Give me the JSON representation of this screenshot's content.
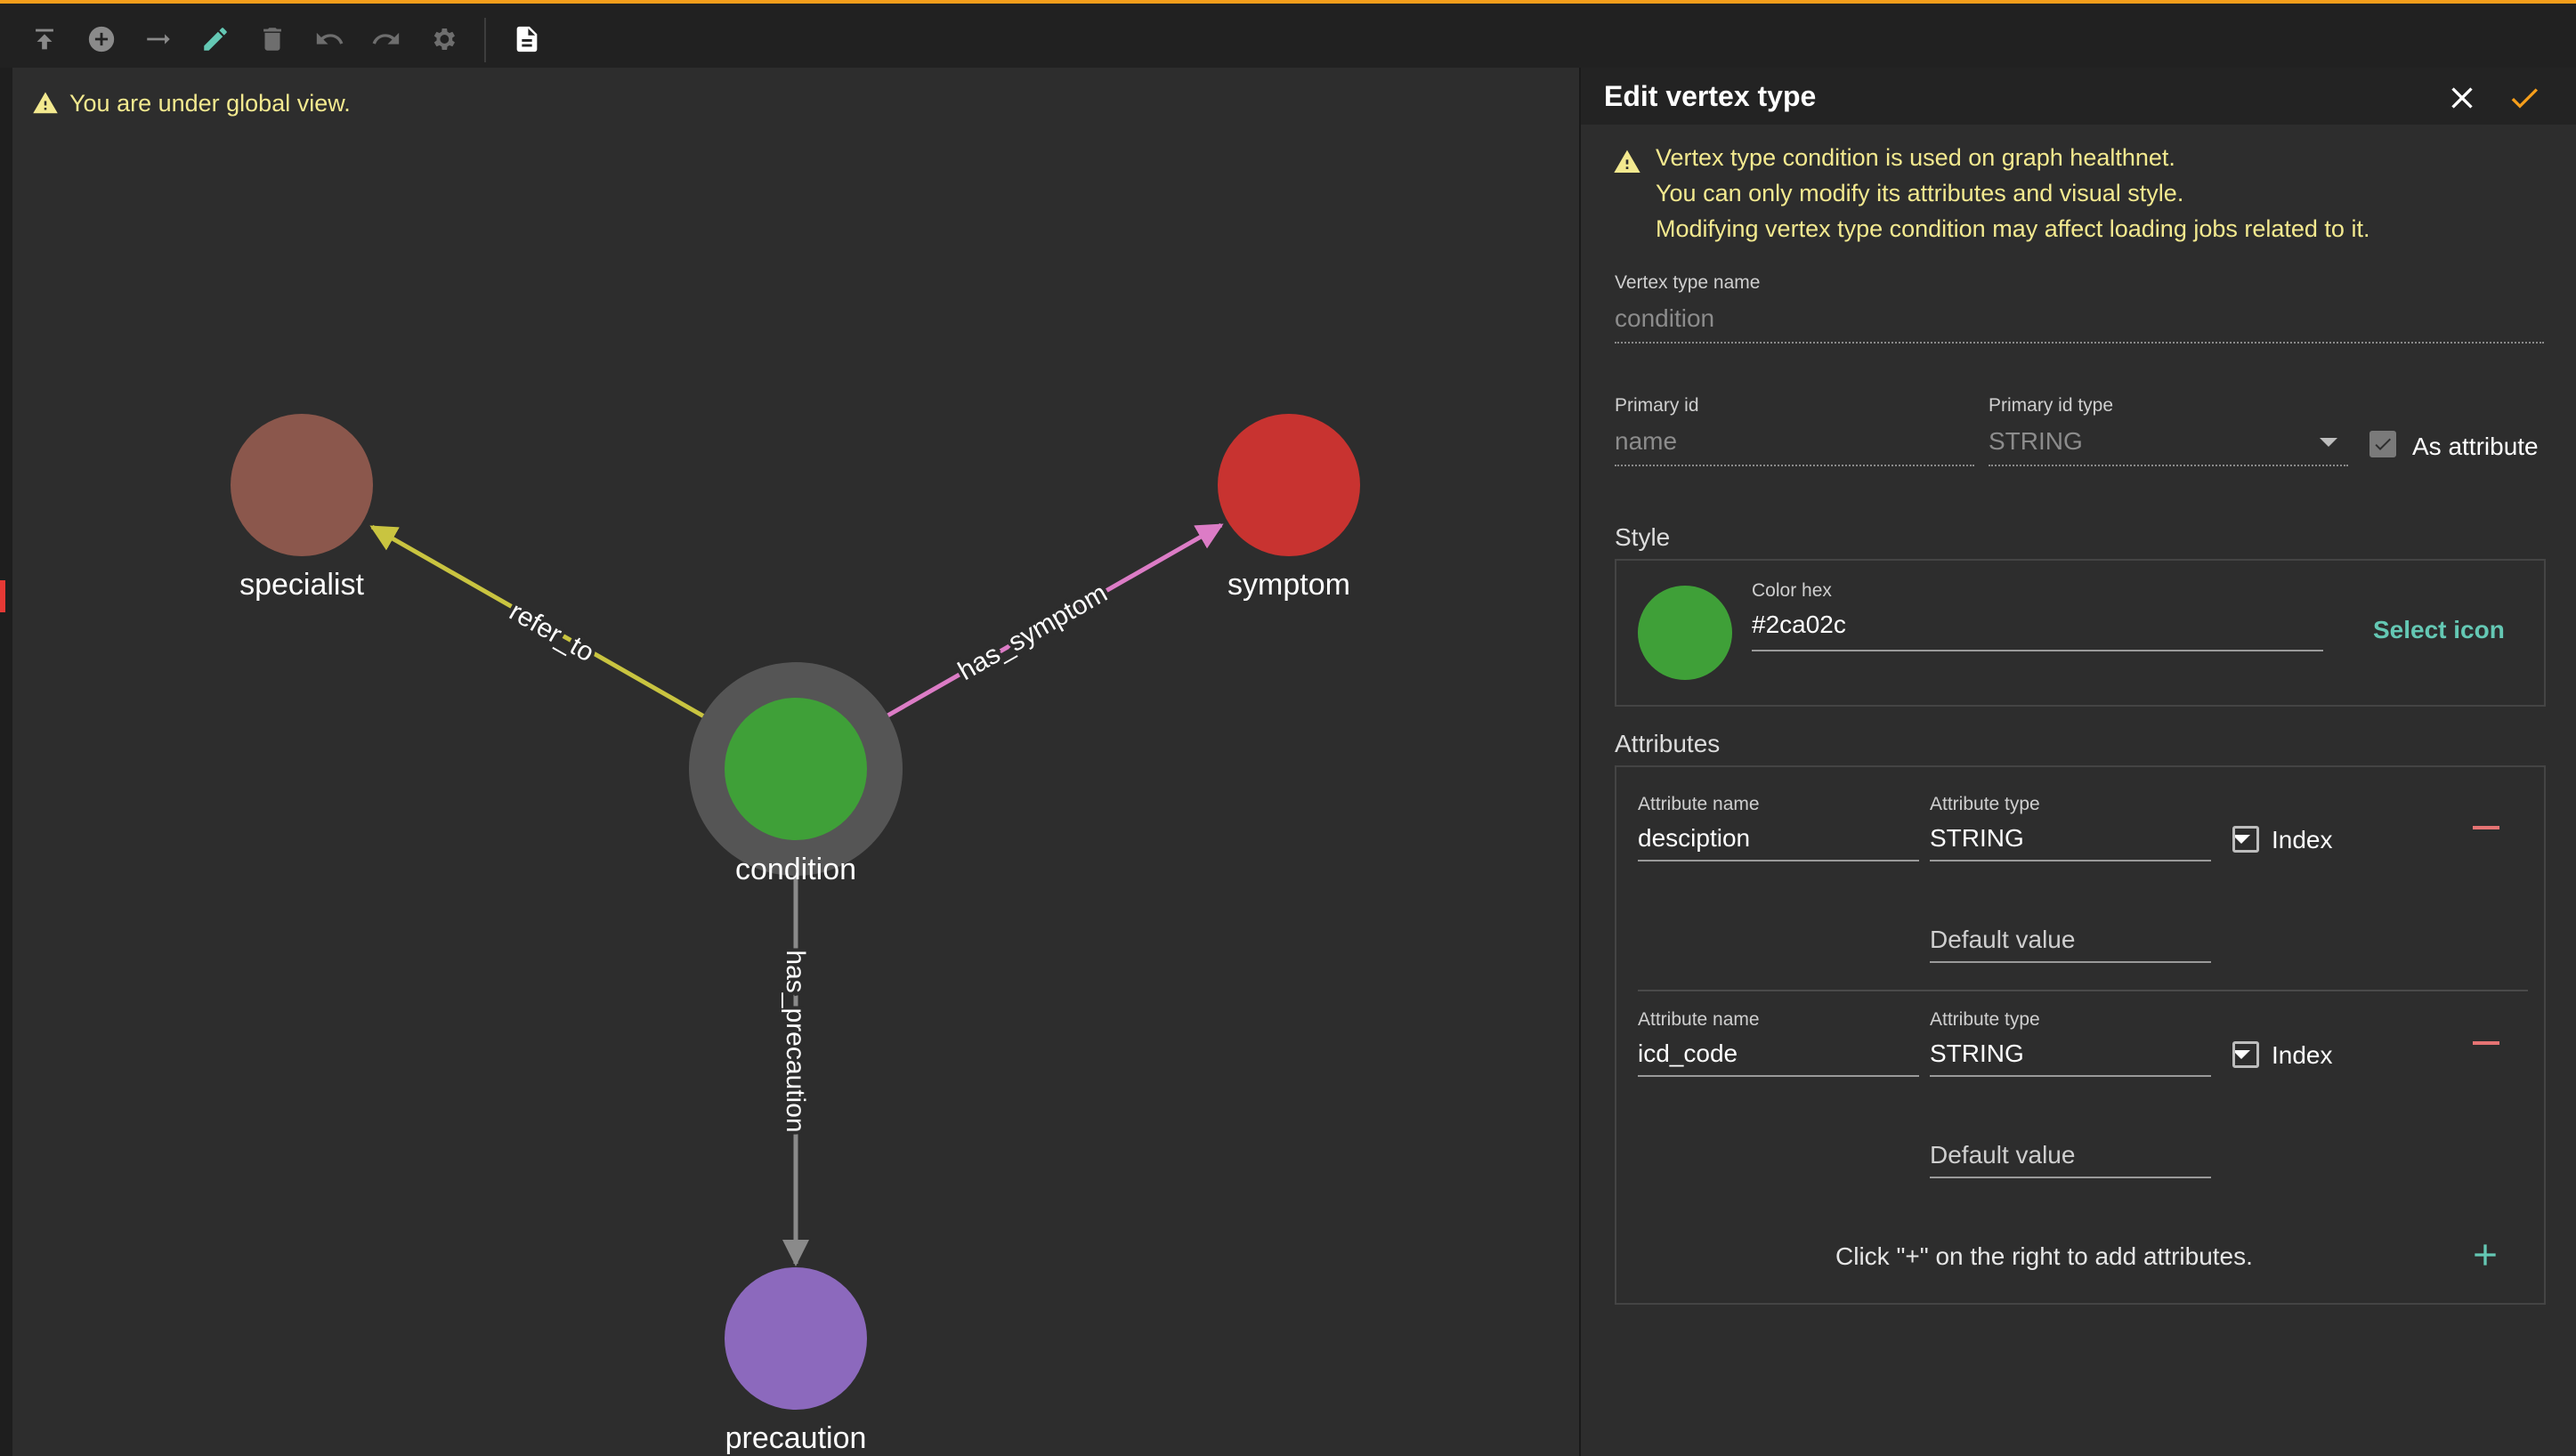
{
  "toolbar": {
    "tools": [
      {
        "name": "upload-icon"
      },
      {
        "name": "add-vertex-icon"
      },
      {
        "name": "add-edge-icon"
      },
      {
        "name": "edit-icon"
      },
      {
        "name": "delete-icon"
      },
      {
        "name": "undo-icon"
      },
      {
        "name": "redo-icon"
      },
      {
        "name": "settings-icon"
      },
      {
        "name": "document-icon"
      }
    ],
    "accent_color": "#f59e1b"
  },
  "canvas": {
    "global_warning": "You are under global view.",
    "vertices": [
      {
        "id": "specialist",
        "label": "specialist",
        "color": "#8b574c"
      },
      {
        "id": "symptom",
        "label": "symptom",
        "color": "#c83330"
      },
      {
        "id": "condition",
        "label": "condition",
        "color": "#3fa038",
        "selected": true
      },
      {
        "id": "precaution",
        "label": "precaution",
        "color": "#8c69bd"
      }
    ],
    "edges": [
      {
        "label": "refer_to",
        "from": "condition",
        "to": "specialist",
        "color": "#c9c440"
      },
      {
        "label": "has_symptom",
        "from": "condition",
        "to": "symptom",
        "color": "#dc7cc6"
      },
      {
        "label": "has_precaution",
        "from": "condition",
        "to": "precaution",
        "color": "#8a8a8a"
      }
    ]
  },
  "panel": {
    "title": "Edit vertex type",
    "warning_lines": [
      "Vertex type condition is used on graph healthnet.",
      "You can only modify its attributes and visual style.",
      "Modifying vertex type condition may affect loading jobs related to it."
    ],
    "vertex_type_name_label": "Vertex type name",
    "vertex_type_name": "condition",
    "primary_id_label": "Primary id",
    "primary_id": "name",
    "primary_id_type_label": "Primary id type",
    "primary_id_type": "STRING",
    "as_attribute_label": "As attribute",
    "as_attribute_checked": true,
    "style_title": "Style",
    "color_hex_label": "Color hex",
    "color_hex": "#2ca02c",
    "select_icon_label": "Select icon",
    "attributes_title": "Attributes",
    "attributes": [
      {
        "name_label": "Attribute name",
        "name": "desciption",
        "type_label": "Attribute type",
        "type": "STRING",
        "index_label": "Index",
        "default_placeholder": "Default value"
      },
      {
        "name_label": "Attribute name",
        "name": "icd_code",
        "type_label": "Attribute type",
        "type": "STRING",
        "index_label": "Index",
        "default_placeholder": "Default value"
      }
    ],
    "add_hint": "Click \"+\" on the right to add attributes."
  }
}
